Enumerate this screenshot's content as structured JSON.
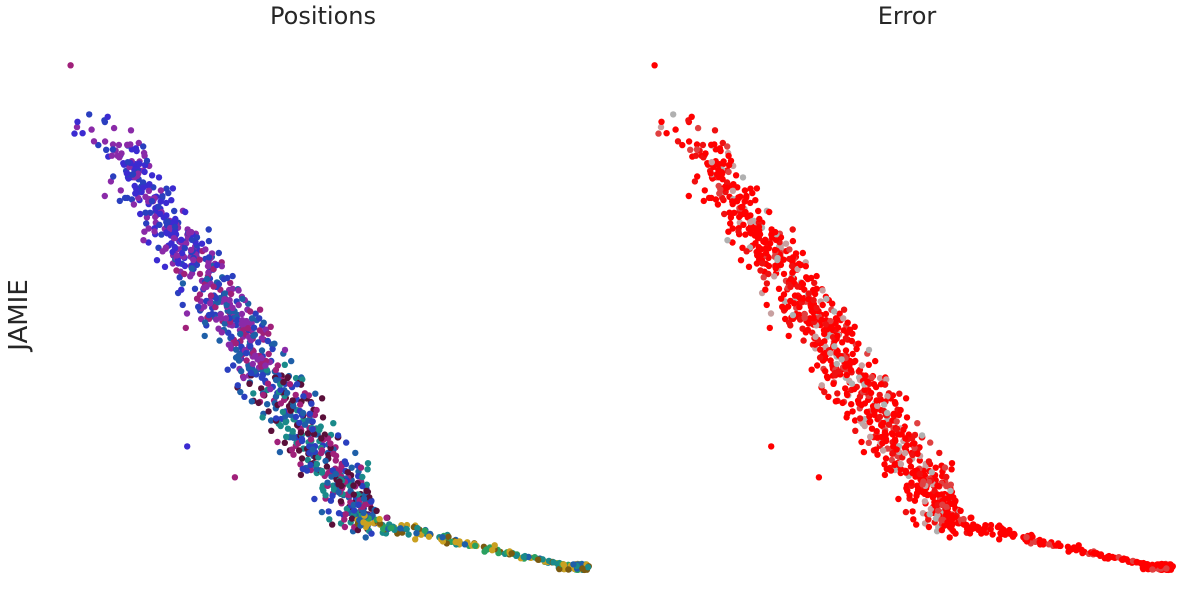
{
  "chart_data": [
    {
      "type": "scatter",
      "title": "Positions",
      "ylabel": "JAMIE",
      "xlabel": "",
      "axes_visible": false,
      "grid": false,
      "color_encoding": "position along curve (blue/purple at top, dark red/teal in middle, green/gold at tail)",
      "palette": [
        "#3b2bd1",
        "#2a3fbf",
        "#8a2aa8",
        "#a0207a",
        "#5a0f3a",
        "#1e5fa8",
        "#1a8a8a",
        "#2aa060",
        "#c9a020",
        "#7a5a10"
      ],
      "xlim": [
        0,
        1
      ],
      "ylim": [
        0,
        1
      ],
      "outliers": [
        {
          "x": 0.02,
          "y": 0.98
        },
        {
          "x": 0.24,
          "y": 0.24
        },
        {
          "x": 0.33,
          "y": 0.18
        }
      ]
    },
    {
      "type": "scatter",
      "title": "Error",
      "xlabel": "",
      "ylabel": "",
      "axes_visible": false,
      "grid": false,
      "color_encoding": "error (red = high, light grey = low)",
      "palette": [
        "#ff0000",
        "#f01010",
        "#e04040",
        "#c8a0a0",
        "#b0b0b0"
      ],
      "xlim": [
        0,
        1
      ],
      "ylim": [
        0,
        1
      ],
      "outliers": [
        {
          "x": 0.02,
          "y": 0.98
        },
        {
          "x": 0.24,
          "y": 0.24
        },
        {
          "x": 0.33,
          "y": 0.18
        }
      ]
    }
  ]
}
